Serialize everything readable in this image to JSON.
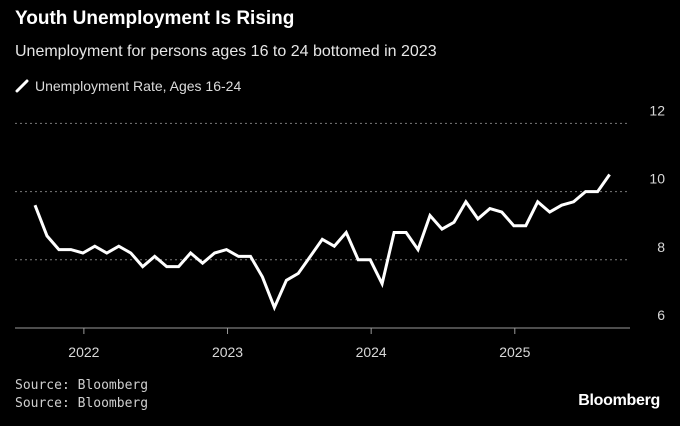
{
  "chart_data": {
    "type": "line",
    "title": "Youth Unemployment Is Rising",
    "subtitle": "Unemployment for persons ages 16 to 24 bottomed in 2023",
    "xlabel": "",
    "ylabel": "",
    "start_month": "2021-09",
    "x_ticks": [
      "2022",
      "2023",
      "2024",
      "2025"
    ],
    "y_ticks": [
      6,
      8,
      10,
      12
    ],
    "ylim": [
      6,
      12
    ],
    "grid": true,
    "legend_position": "top-left",
    "series": [
      {
        "name": "Unemployment Rate, Ages 16-24",
        "color": "#ffffff",
        "values": [
          9.6,
          8.7,
          8.3,
          8.3,
          8.2,
          8.4,
          8.2,
          8.4,
          8.2,
          7.8,
          8.1,
          7.8,
          7.8,
          8.2,
          7.9,
          8.2,
          8.3,
          8.1,
          8.1,
          7.5,
          6.6,
          7.4,
          7.6,
          8.1,
          8.6,
          8.4,
          8.8,
          8.0,
          8.0,
          7.3,
          8.8,
          8.8,
          8.3,
          9.3,
          8.9,
          9.1,
          9.7,
          9.2,
          9.5,
          9.4,
          9.0,
          9.0,
          9.7,
          9.4,
          9.6,
          9.7,
          10.0,
          10.0,
          10.5
        ]
      }
    ]
  },
  "footer": {
    "sources": [
      "Source: Bloomberg",
      "Source: Bloomberg"
    ],
    "logo": "Bloomberg"
  }
}
